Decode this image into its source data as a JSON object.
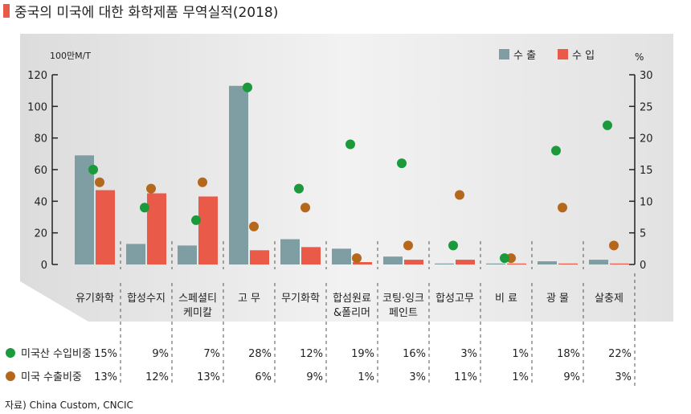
{
  "title": "중국의 미국에 대한 화학제품 무역실적(2018)",
  "source": "자료) China Custom, CNCIC",
  "colors": {
    "export": "#7e9ea3",
    "import": "#ea5a49",
    "import_share": "#1a9a3a",
    "export_share": "#b5671c",
    "accent": "#ea5a49"
  },
  "chart_data": {
    "type": "bar",
    "title": "중국의 미국에 대한 화학제품 무역실적(2018)",
    "ylabel": "100만M/T",
    "y2label": "%",
    "ylim": [
      0,
      120
    ],
    "y2lim": [
      0,
      30
    ],
    "yticks": [
      "0",
      "20",
      "40",
      "60",
      "80",
      "100",
      "120"
    ],
    "y2ticks": [
      "0",
      "5",
      "10",
      "15",
      "20",
      "25",
      "30"
    ],
    "categories": [
      [
        "유기화학"
      ],
      [
        "합성수지"
      ],
      [
        "스페셜티",
        "케미칼"
      ],
      [
        "고 무"
      ],
      [
        "무기화학"
      ],
      [
        "합섬원료",
        "&폴리머"
      ],
      [
        "코팅·잉크",
        "페인트"
      ],
      [
        "합성고무"
      ],
      [
        "비 료"
      ],
      [
        "광 물"
      ],
      [
        "살충제"
      ]
    ],
    "series": [
      {
        "name": "수 출",
        "type": "bar",
        "values": [
          69,
          13,
          12,
          113,
          16,
          10,
          5,
          0.6,
          0.6,
          2,
          3
        ]
      },
      {
        "name": "수 입",
        "type": "bar",
        "values": [
          47,
          45,
          43,
          9,
          11,
          1.5,
          3,
          3,
          0.6,
          0.6,
          0.6
        ]
      },
      {
        "name": "미국산 수입비중",
        "type": "scatter",
        "axis": "right",
        "values": [
          15,
          9,
          7,
          28,
          12,
          19,
          16,
          3,
          1,
          18,
          22
        ],
        "labels": [
          "15%",
          "9%",
          "7%",
          "28%",
          "12%",
          "19%",
          "16%",
          "3%",
          "1%",
          "18%",
          "22%"
        ]
      },
      {
        "name": "미국 수출비중",
        "type": "scatter",
        "axis": "right",
        "values": [
          13,
          12,
          13,
          6,
          9,
          1,
          3,
          11,
          1,
          9,
          3
        ],
        "labels": [
          "13%",
          "12%",
          "13%",
          "6%",
          "9%",
          "1%",
          "3%",
          "11%",
          "1%",
          "9%",
          "3%"
        ]
      }
    ],
    "legend": "top-right"
  }
}
